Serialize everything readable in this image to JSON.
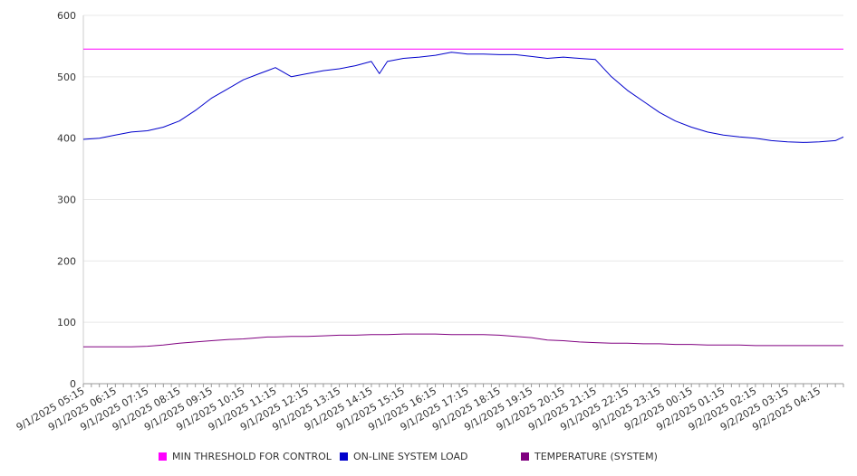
{
  "chart_data": {
    "type": "line",
    "title": "",
    "xlabel": "",
    "ylabel": "",
    "ylim": [
      0,
      600
    ],
    "yticks": [
      0,
      100,
      200,
      300,
      400,
      500,
      600
    ],
    "xtick_labels": [
      "9/1/2025 05:15",
      "9/1/2025 06:15",
      "9/1/2025 07:15",
      "9/1/2025 08:15",
      "9/1/2025 09:15",
      "9/1/2025 10:15",
      "9/1/2025 11:15",
      "9/1/2025 12:15",
      "9/1/2025 13:15",
      "9/1/2025 14:15",
      "9/1/2025 15:15",
      "9/1/2025 16:15",
      "9/1/2025 17:15",
      "9/1/2025 18:15",
      "9/1/2025 19:15",
      "9/1/2025 20:15",
      "9/1/2025 21:15",
      "9/1/2025 22:15",
      "9/1/2025 23:15",
      "9/2/2025 00:15",
      "9/2/2025 01:15",
      "9/2/2025 02:15",
      "9/2/2025 03:15",
      "9/2/2025 04:15"
    ],
    "grid": true,
    "legend_position": "bottom",
    "x": [
      "9/1/2025 05:15",
      "9/1/2025 05:45",
      "9/1/2025 06:15",
      "9/1/2025 06:45",
      "9/1/2025 07:15",
      "9/1/2025 07:45",
      "9/1/2025 08:15",
      "9/1/2025 08:45",
      "9/1/2025 09:15",
      "9/1/2025 09:45",
      "9/1/2025 10:15",
      "9/1/2025 10:45",
      "9/1/2025 11:00",
      "9/1/2025 11:15",
      "9/1/2025 11:45",
      "9/1/2025 12:15",
      "9/1/2025 12:45",
      "9/1/2025 13:15",
      "9/1/2025 13:45",
      "9/1/2025 14:15",
      "9/1/2025 14:30",
      "9/1/2025 14:45",
      "9/1/2025 15:15",
      "9/1/2025 15:45",
      "9/1/2025 16:15",
      "9/1/2025 16:45",
      "9/1/2025 17:15",
      "9/1/2025 17:45",
      "9/1/2025 18:15",
      "9/1/2025 18:45",
      "9/1/2025 19:15",
      "9/1/2025 19:45",
      "9/1/2025 20:15",
      "9/1/2025 20:45",
      "9/1/2025 21:15",
      "9/1/2025 21:45",
      "9/1/2025 22:15",
      "9/1/2025 22:45",
      "9/1/2025 23:15",
      "9/1/2025 23:45",
      "9/2/2025 00:15",
      "9/2/2025 00:45",
      "9/2/2025 01:15",
      "9/2/2025 01:45",
      "9/2/2025 02:15",
      "9/2/2025 02:45",
      "9/2/2025 03:15",
      "9/2/2025 03:45",
      "9/2/2025 04:15",
      "9/2/2025 04:45",
      "9/2/2025 05:00"
    ],
    "series": [
      {
        "name": "MIN THRESHOLD FOR CONTROL",
        "color": "#ff00ff",
        "values": [
          545,
          545,
          545,
          545,
          545,
          545,
          545,
          545,
          545,
          545,
          545,
          545,
          545,
          545,
          545,
          545,
          545,
          545,
          545,
          545,
          545,
          545,
          545,
          545,
          545,
          545,
          545,
          545,
          545,
          545,
          545,
          545,
          545,
          545,
          545,
          545,
          545,
          545,
          545,
          545,
          545,
          545,
          545,
          545,
          545,
          545,
          545,
          545,
          545,
          545,
          545
        ]
      },
      {
        "name": "ON-LINE SYSTEM LOAD",
        "color": "#0000cc",
        "values": [
          398,
          400,
          405,
          410,
          412,
          418,
          428,
          445,
          465,
          480,
          495,
          505,
          510,
          515,
          500,
          505,
          510,
          513,
          518,
          525,
          505,
          525,
          530,
          532,
          535,
          540,
          537,
          537,
          536,
          536,
          533,
          530,
          532,
          530,
          528,
          500,
          478,
          460,
          442,
          428,
          418,
          410,
          405,
          402,
          400,
          396,
          394,
          393,
          394,
          396,
          402
        ]
      },
      {
        "name": "TEMPERATURE (SYSTEM)",
        "color": "#800080",
        "values": [
          60,
          60,
          60,
          60,
          61,
          63,
          66,
          68,
          70,
          72,
          73,
          75,
          76,
          76,
          77,
          77,
          78,
          79,
          79,
          80,
          80,
          80,
          81,
          81,
          81,
          80,
          80,
          80,
          79,
          77,
          75,
          71,
          70,
          68,
          67,
          66,
          66,
          65,
          65,
          64,
          64,
          63,
          63,
          63,
          62,
          62,
          62,
          62,
          62,
          62,
          62
        ]
      }
    ]
  }
}
